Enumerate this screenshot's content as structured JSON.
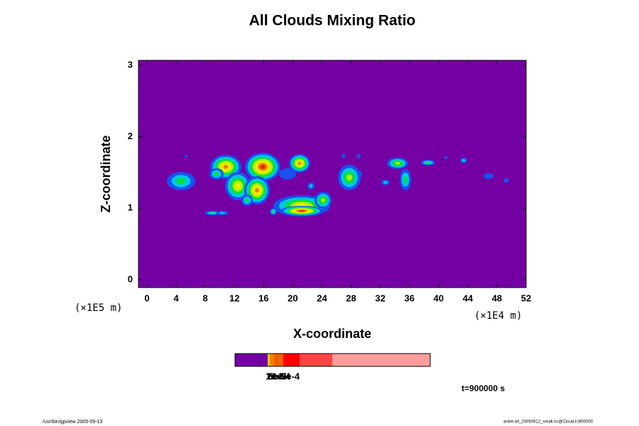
{
  "chart_data": {
    "type": "contour",
    "title": "All Clouds Mixing Ratio",
    "xlabel": "X-coordinate",
    "ylabel": "Z-coordinate",
    "xunit": "(×1E4 m)",
    "yunit": "(×1E5 m)",
    "xlim": [
      -1.17,
      52
    ],
    "ylim": [
      -0.11,
      3.07
    ],
    "xticks": [
      0,
      4,
      8,
      12,
      16,
      20,
      24,
      28,
      32,
      36,
      40,
      44,
      48,
      52
    ],
    "yticks": [
      0,
      1,
      2,
      3
    ],
    "background_color": "#7400a4",
    "colorbar": {
      "colors": [
        "#7400a4",
        "#f0d000",
        "#f0a000",
        "#f08000",
        "#f06000",
        "#ff0000",
        "#ff4444",
        "#ff9c9c"
      ],
      "labels": [
        "1e-5",
        "2e-5",
        "5e-5",
        "1e-4",
        "2e-4"
      ]
    },
    "time_label": "t=900000 s",
    "footer_left": "/usr/bin/gpview 2005-09-13",
    "footer_right": "arare-all_20050912_small.nc@Cloud,t=900000"
  }
}
